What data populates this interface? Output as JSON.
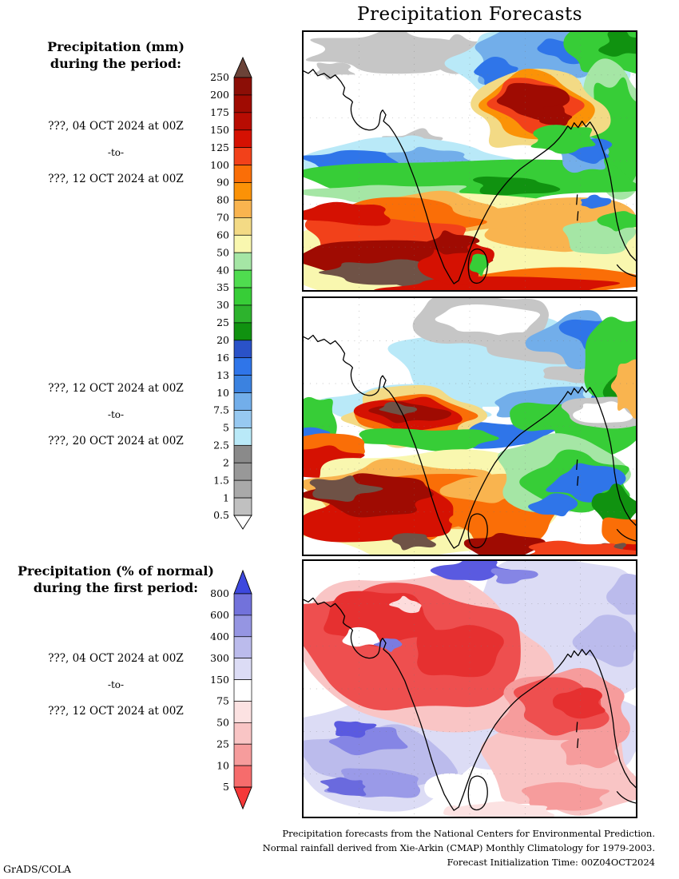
{
  "title": "Precipitation Forecasts",
  "section_mm": {
    "heading_line1": "Precipitation (mm)",
    "heading_line2": "during the period:",
    "period1": {
      "from": "???, 04 OCT 2024 at 00Z",
      "sep": "-to-",
      "to": "???, 12 OCT 2024 at 00Z"
    },
    "period2": {
      "from": "???, 12 OCT 2024 at 00Z",
      "sep": "-to-",
      "to": "???, 20 OCT 2024 at 00Z"
    }
  },
  "section_pct": {
    "heading_line1": "Precipitation (% of normal)",
    "heading_line2": "during the first period:",
    "period": {
      "from": "???, 04 OCT 2024 at 00Z",
      "sep": "-to-",
      "to": "???, 12 OCT 2024 at 00Z"
    }
  },
  "colorbar_mm": {
    "unit": "mm",
    "tick_labels": [
      "250",
      "200",
      "175",
      "150",
      "125",
      "100",
      "90",
      "80",
      "70",
      "60",
      "50",
      "40",
      "35",
      "30",
      "25",
      "20",
      "16",
      "13",
      "10",
      "7.5",
      "5",
      "2.5",
      "2",
      "1.5",
      "1",
      "0.5"
    ],
    "segment_colors_top_to_bottom": [
      "#8c0e06",
      "#a00b02",
      "#b80c02",
      "#d51102",
      "#f2411a",
      "#fa6e07",
      "#fb9207",
      "#f9b44f",
      "#f3da85",
      "#f9f7af",
      "#a5e6a5",
      "#4fdc4f",
      "#37cd37",
      "#2db32d",
      "#109210",
      "#2a52c8",
      "#2f75e9",
      "#3b82e0",
      "#72aeea",
      "#97c9f1",
      "#b9e9f8",
      "#8a8a8a",
      "#989898",
      "#a9a9a9",
      "#c0c0c0"
    ],
    "above_max_color": "#6b4338",
    "below_min_color": "#ffffff"
  },
  "colorbar_pct": {
    "unit": "% of normal",
    "tick_labels": [
      "800",
      "600",
      "400",
      "300",
      "150",
      "75",
      "50",
      "25",
      "10",
      "5"
    ],
    "segment_colors_top_to_bottom": [
      "#7272db",
      "#9595e2",
      "#bbbbec",
      "#dcdcf5",
      "#ffffff",
      "#fce2e2",
      "#f9c5c5",
      "#f69c9c",
      "#f66c6c"
    ],
    "above_max_color": "#3d48de",
    "below_min_color": "#f53838"
  },
  "footer": {
    "line1": "Precipitation forecasts from the National Centers for Environmental Prediction.",
    "line2": "Normal rainfall derived from Xie-Arkin (CMAP) Monthly Climatology for 1979-2003.",
    "line3": "Forecast Initialization Time: 00Z04OCT2024"
  },
  "credit": "GrADS/COLA"
}
